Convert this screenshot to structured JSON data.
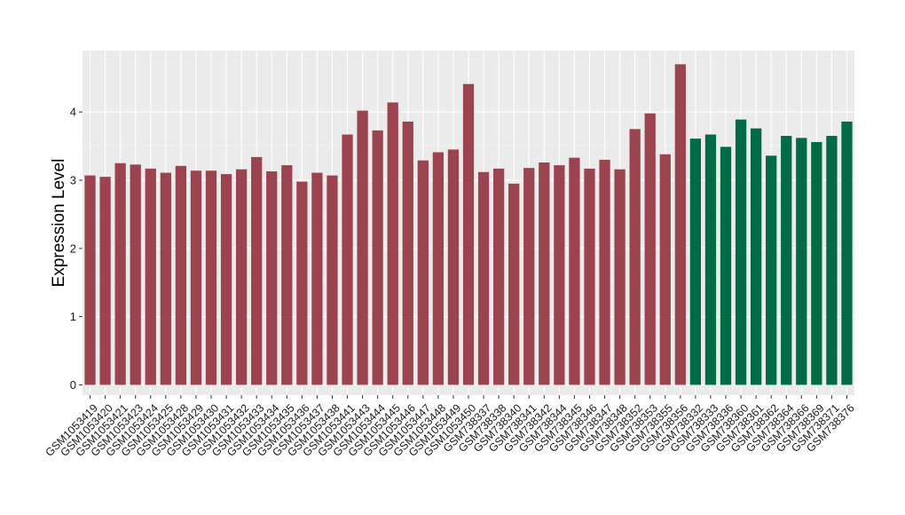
{
  "chart_data": {
    "type": "bar",
    "title": "",
    "xlabel": "",
    "ylabel": "Expression Level",
    "ylim": [
      -0.15,
      4.9
    ],
    "yticks": [
      0,
      1,
      2,
      3,
      4
    ],
    "grid": true,
    "legend": "none",
    "categories": [
      "GSM1053419",
      "GSM1053420",
      "GSM1053421",
      "GSM1053423",
      "GSM1053424",
      "GSM1053425",
      "GSM1053428",
      "GSM1053429",
      "GSM1053430",
      "GSM1053431",
      "GSM1053432",
      "GSM1053433",
      "GSM1053434",
      "GSM1053435",
      "GSM1053436",
      "GSM1053437",
      "GSM1053438",
      "GSM1053441",
      "GSM1053443",
      "GSM1053444",
      "GSM1053445",
      "GSM1053446",
      "GSM1053447",
      "GSM1053448",
      "GSM1053449",
      "GSM1053450",
      "GSM738337",
      "GSM738338",
      "GSM738340",
      "GSM738341",
      "GSM738342",
      "GSM738344",
      "GSM738345",
      "GSM738346",
      "GSM738347",
      "GSM738348",
      "GSM738352",
      "GSM738353",
      "GSM738355",
      "GSM738356",
      "GSM738332",
      "GSM738333",
      "GSM738336",
      "GSM738360",
      "GSM738361",
      "GSM738362",
      "GSM738364",
      "GSM738366",
      "GSM738369",
      "GSM738371",
      "GSM738376"
    ],
    "values": [
      3.07,
      3.05,
      3.25,
      3.23,
      3.17,
      3.11,
      3.21,
      3.14,
      3.14,
      3.09,
      3.16,
      3.34,
      3.13,
      3.22,
      2.98,
      3.11,
      3.07,
      3.67,
      4.02,
      3.73,
      4.14,
      3.86,
      3.29,
      3.41,
      3.45,
      4.41,
      3.12,
      3.17,
      2.95,
      3.18,
      3.26,
      3.22,
      3.33,
      3.17,
      3.3,
      3.16,
      3.75,
      3.98,
      3.38,
      4.7,
      3.61,
      3.67,
      3.49,
      3.89,
      3.76,
      3.36,
      3.65,
      3.62,
      3.56,
      3.65,
      3.86
    ],
    "colors": [
      "#9b4450",
      "#9b4450",
      "#9b4450",
      "#9b4450",
      "#9b4450",
      "#9b4450",
      "#9b4450",
      "#9b4450",
      "#9b4450",
      "#9b4450",
      "#9b4450",
      "#9b4450",
      "#9b4450",
      "#9b4450",
      "#9b4450",
      "#9b4450",
      "#9b4450",
      "#9b4450",
      "#9b4450",
      "#9b4450",
      "#9b4450",
      "#9b4450",
      "#9b4450",
      "#9b4450",
      "#9b4450",
      "#9b4450",
      "#9b4450",
      "#9b4450",
      "#9b4450",
      "#9b4450",
      "#9b4450",
      "#9b4450",
      "#9b4450",
      "#9b4450",
      "#9b4450",
      "#9b4450",
      "#9b4450",
      "#9b4450",
      "#9b4450",
      "#9b4450",
      "#006b45",
      "#006b45",
      "#006b45",
      "#006b45",
      "#006b45",
      "#006b45",
      "#006b45",
      "#006b45",
      "#006b45",
      "#006b45",
      "#006b45"
    ]
  }
}
